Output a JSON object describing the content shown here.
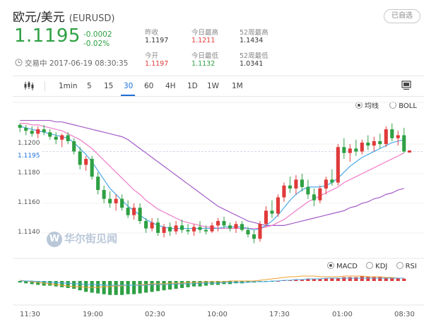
{
  "header": {
    "title": "欧元/美元",
    "code": "(EURUSD)",
    "favorite_label": "已自选",
    "price": "1.1195",
    "change_abs": "-0.0002",
    "change_pct": "-0.02%",
    "status": "交易中 2017-06-19 08:30:35"
  },
  "stats": [
    {
      "label": "昨收",
      "value": "1.1197",
      "color": "#333333"
    },
    {
      "label": "今日最高",
      "value": "1.1211",
      "color": "#e03a3a"
    },
    {
      "label": "52周最高",
      "value": "1.1434",
      "color": "#333333"
    },
    {
      "label": "今开",
      "value": "1.1197",
      "color": "#e03a3a"
    },
    {
      "label": "今日最低",
      "value": "1.1132",
      "color": "#2ea043"
    },
    {
      "label": "52周最低",
      "value": "1.0341",
      "color": "#333333"
    }
  ],
  "toolbar": {
    "intervals": [
      "1min",
      "5",
      "15",
      "30",
      "60",
      "4H",
      "1D",
      "1W",
      "1M"
    ],
    "active": "30",
    "chart_type_icon": "candlestick-icon",
    "snapshot_icon": "screenshot-icon"
  },
  "main_legend": {
    "ma_label": "均线",
    "boll_label": "BOLL",
    "selected": "均线"
  },
  "sub_legend": {
    "macd_label": "MACD",
    "kdj_label": "KDJ",
    "rsi_label": "RSI",
    "selected": "MACD"
  },
  "watermark": "华尔街见闻",
  "chart_data": {
    "type": "candlestick",
    "y_ticks": [
      "1.1200",
      "1.1180",
      "1.1160",
      "1.1140"
    ],
    "current_price": "1.1195",
    "ylim": [
      1.1128,
      1.1222
    ],
    "x_ticks": [
      "11:30",
      "19:00",
      "02:30",
      "10:00",
      "17:30",
      "01:00",
      "08:30"
    ],
    "colors": {
      "up": "#e03a3a",
      "down": "#2ea043",
      "ma_fast": "#4aa8e8",
      "ma_mid": "#f07ac8",
      "ma_slow": "#a35cc8",
      "dif": "#f0a030",
      "dea": "#4aa8e8"
    },
    "candles": [
      [
        1.1213,
        1.1214,
        1.1208,
        1.1211
      ],
      [
        1.1211,
        1.1213,
        1.1206,
        1.1209
      ],
      [
        1.1209,
        1.1212,
        1.1205,
        1.1207
      ],
      [
        1.1207,
        1.1212,
        1.1204,
        1.121
      ],
      [
        1.121,
        1.1213,
        1.1206,
        1.1208
      ],
      [
        1.1208,
        1.121,
        1.1203,
        1.1205
      ],
      [
        1.1205,
        1.1208,
        1.12,
        1.1203
      ],
      [
        1.1203,
        1.1207,
        1.1198,
        1.1206
      ],
      [
        1.1206,
        1.1208,
        1.12,
        1.1202
      ],
      [
        1.1202,
        1.1204,
        1.1193,
        1.1195
      ],
      [
        1.1195,
        1.1198,
        1.1183,
        1.1186
      ],
      [
        1.1186,
        1.1192,
        1.1182,
        1.119
      ],
      [
        1.119,
        1.1192,
        1.1176,
        1.1178
      ],
      [
        1.1178,
        1.1181,
        1.1166,
        1.1169
      ],
      [
        1.1169,
        1.1172,
        1.116,
        1.1163
      ],
      [
        1.1163,
        1.1168,
        1.1157,
        1.116
      ],
      [
        1.116,
        1.1166,
        1.1155,
        1.1163
      ],
      [
        1.1163,
        1.1166,
        1.1155,
        1.1157
      ],
      [
        1.1157,
        1.1162,
        1.115,
        1.1152
      ],
      [
        1.1152,
        1.116,
        1.1149,
        1.1157
      ],
      [
        1.1157,
        1.116,
        1.1146,
        1.1148
      ],
      [
        1.1148,
        1.115,
        1.114,
        1.1143
      ],
      [
        1.1143,
        1.115,
        1.1141,
        1.1147
      ],
      [
        1.1147,
        1.115,
        1.1138,
        1.114
      ],
      [
        1.114,
        1.1146,
        1.1137,
        1.1144
      ],
      [
        1.1144,
        1.1147,
        1.1138,
        1.1141
      ],
      [
        1.1141,
        1.1148,
        1.1139,
        1.1145
      ],
      [
        1.1145,
        1.1149,
        1.114,
        1.1142
      ],
      [
        1.1142,
        1.1146,
        1.1139,
        1.1141
      ],
      [
        1.1141,
        1.1146,
        1.1138,
        1.1144
      ],
      [
        1.1144,
        1.1148,
        1.114,
        1.1142
      ],
      [
        1.1142,
        1.1145,
        1.1139,
        1.1141
      ],
      [
        1.1141,
        1.1147,
        1.114,
        1.1145
      ],
      [
        1.1145,
        1.115,
        1.1141,
        1.1148
      ],
      [
        1.1148,
        1.1151,
        1.1143,
        1.1145
      ],
      [
        1.1145,
        1.1147,
        1.1141,
        1.1143
      ],
      [
        1.1143,
        1.1148,
        1.114,
        1.1146
      ],
      [
        1.1146,
        1.1148,
        1.1141,
        1.1142
      ],
      [
        1.1142,
        1.1144,
        1.1137,
        1.1139
      ],
      [
        1.1139,
        1.1142,
        1.1133,
        1.1136
      ],
      [
        1.1136,
        1.1148,
        1.1134,
        1.1146
      ],
      [
        1.1146,
        1.1158,
        1.1144,
        1.1155
      ],
      [
        1.1155,
        1.1162,
        1.115,
        1.1153
      ],
      [
        1.1153,
        1.1166,
        1.1151,
        1.1164
      ],
      [
        1.1164,
        1.1174,
        1.1161,
        1.1172
      ],
      [
        1.1172,
        1.1178,
        1.1167,
        1.117
      ],
      [
        1.117,
        1.1179,
        1.1166,
        1.1176
      ],
      [
        1.1176,
        1.118,
        1.1168,
        1.1171
      ],
      [
        1.1171,
        1.1176,
        1.1163,
        1.1166
      ],
      [
        1.1166,
        1.117,
        1.1158,
        1.1162
      ],
      [
        1.1162,
        1.1172,
        1.116,
        1.117
      ],
      [
        1.117,
        1.1178,
        1.1166,
        1.1176
      ],
      [
        1.1176,
        1.1183,
        1.1172,
        1.1174
      ],
      [
        1.1174,
        1.12,
        1.1172,
        1.1198
      ],
      [
        1.1198,
        1.1204,
        1.119,
        1.1194
      ],
      [
        1.1194,
        1.12,
        1.1188,
        1.1197
      ],
      [
        1.1197,
        1.1203,
        1.1192,
        1.1195
      ],
      [
        1.1195,
        1.1203,
        1.1193,
        1.1201
      ],
      [
        1.1201,
        1.1206,
        1.1196,
        1.1199
      ],
      [
        1.1199,
        1.1205,
        1.1195,
        1.1202
      ],
      [
        1.1202,
        1.1207,
        1.1197,
        1.12
      ],
      [
        1.12,
        1.1212,
        1.1198,
        1.121
      ],
      [
        1.121,
        1.1214,
        1.1202,
        1.1204
      ],
      [
        1.1204,
        1.1209,
        1.1199,
        1.1206
      ],
      [
        1.1206,
        1.1211,
        1.1194,
        1.1195
      ]
    ],
    "ma_fast": [
      1.1212,
      1.1211,
      1.121,
      1.1209,
      1.1208,
      1.1207,
      1.1206,
      1.1205,
      1.1204,
      1.1201,
      1.1197,
      1.1193,
      1.1188,
      1.1182,
      1.1176,
      1.117,
      1.1166,
      1.1162,
      1.1158,
      1.1155,
      1.1152,
      1.1149,
      1.1147,
      1.1145,
      1.1144,
      1.1143,
      1.1143,
      1.1143,
      1.1143,
      1.1143,
      1.1143,
      1.1143,
      1.1143,
      1.1143,
      1.1144,
      1.1144,
      1.1144,
      1.1144,
      1.1143,
      1.1142,
      1.1143,
      1.1145,
      1.1148,
      1.1152,
      1.1157,
      1.1162,
      1.1166,
      1.1169,
      1.1171,
      1.1171,
      1.1171,
      1.1172,
      1.1174,
      1.1177,
      1.1181,
      1.1185,
      1.1188,
      1.1191,
      1.1193,
      1.1195,
      1.1197,
      1.1199,
      1.1201,
      1.1202,
      1.1203
    ],
    "ma_mid": [
      1.1214,
      1.1214,
      1.1213,
      1.1213,
      1.1212,
      1.1211,
      1.121,
      1.1209,
      1.1207,
      1.1205,
      1.1203,
      1.12,
      1.1197,
      1.1193,
      1.1189,
      1.1185,
      1.1181,
      1.1177,
      1.1173,
      1.1169,
      1.1166,
      1.1162,
      1.1159,
      1.1156,
      1.1154,
      1.1152,
      1.115,
      1.1148,
      1.1147,
      1.1146,
      1.1145,
      1.1144,
      1.1144,
      1.1143,
      1.1143,
      1.1143,
      1.1143,
      1.1143,
      1.1143,
      1.1143,
      1.1143,
      1.1144,
      1.1145,
      1.1147,
      1.1149,
      1.1152,
      1.1155,
      1.1158,
      1.1161,
      1.1163,
      1.1165,
      1.1167,
      1.1169,
      1.1171,
      1.1174,
      1.1176,
      1.1178,
      1.118,
      1.1182,
      1.1184,
      1.1186,
      1.1188,
      1.119,
      1.1192,
      1.1194
    ],
    "ma_slow": [
      1.1216,
      1.1216,
      1.1216,
      1.1216,
      1.1216,
      1.1216,
      1.1215,
      1.1215,
      1.1214,
      1.1213,
      1.1212,
      1.1211,
      1.121,
      1.1209,
      1.1208,
      1.1207,
      1.1206,
      1.1205,
      1.1203,
      1.12,
      1.1197,
      1.1194,
      1.1191,
      1.1188,
      1.1185,
      1.1182,
      1.1179,
      1.1176,
      1.1173,
      1.117,
      1.1167,
      1.1164,
      1.1161,
      1.1158,
      1.1156,
      1.1154,
      1.1152,
      1.115,
      1.1148,
      1.1147,
      1.1146,
      1.1145,
      1.1145,
      1.1145,
      1.1145,
      1.1146,
      1.1147,
      1.1148,
      1.1149,
      1.115,
      1.1151,
      1.1152,
      1.1153,
      1.1154,
      1.1155,
      1.1157,
      1.1158,
      1.116,
      1.1161,
      1.1163,
      1.1164,
      1.1166,
      1.1167,
      1.1169,
      1.117
    ],
    "macd": [
      -2,
      -3,
      -4,
      -5,
      -6,
      -6,
      -7,
      -8,
      -9,
      -10,
      -12,
      -14,
      -15,
      -16,
      -17,
      -18,
      -18,
      -18,
      -17,
      -17,
      -16,
      -15,
      -14,
      -13,
      -12,
      -11,
      -10,
      -9,
      -8,
      -7,
      -7,
      -6,
      -5,
      -5,
      -4,
      -4,
      -3,
      -3,
      -2,
      -2,
      -1,
      -1,
      -1,
      0,
      1,
      1,
      2,
      2,
      3,
      3,
      3,
      3,
      4,
      4,
      5,
      5,
      5,
      6,
      6,
      5,
      5,
      5,
      4,
      4,
      3
    ],
    "dif": [
      1,
      0,
      -1,
      -2,
      -3,
      -4,
      -5,
      -6,
      -7,
      -8,
      -8,
      -9,
      -9,
      -9,
      -8,
      -8,
      -7,
      -7,
      -6,
      -6,
      -5,
      -5,
      -4,
      -4,
      -4,
      -3,
      -3,
      -3,
      -2,
      -2,
      -2,
      -1,
      -1,
      -1,
      -1,
      0,
      0,
      0,
      0,
      0,
      1,
      2,
      3,
      4,
      5,
      6,
      6,
      7,
      7,
      7,
      6,
      6,
      6,
      6,
      7,
      7,
      7,
      7,
      6,
      6,
      6,
      5,
      5,
      4,
      4
    ],
    "dea": [
      0,
      0,
      0,
      -1,
      -1,
      -2,
      -2,
      -3,
      -3,
      -4,
      -4,
      -5,
      -5,
      -5,
      -6,
      -6,
      -6,
      -6,
      -6,
      -6,
      -6,
      -6,
      -5,
      -5,
      -5,
      -5,
      -4,
      -4,
      -4,
      -4,
      -3,
      -3,
      -3,
      -3,
      -2,
      -2,
      -2,
      -2,
      -2,
      -1,
      -1,
      -1,
      0,
      0,
      1,
      1,
      2,
      2,
      3,
      3,
      3,
      4,
      4,
      4,
      4,
      4,
      4,
      4,
      4,
      4,
      4,
      4,
      4,
      4,
      4
    ]
  }
}
